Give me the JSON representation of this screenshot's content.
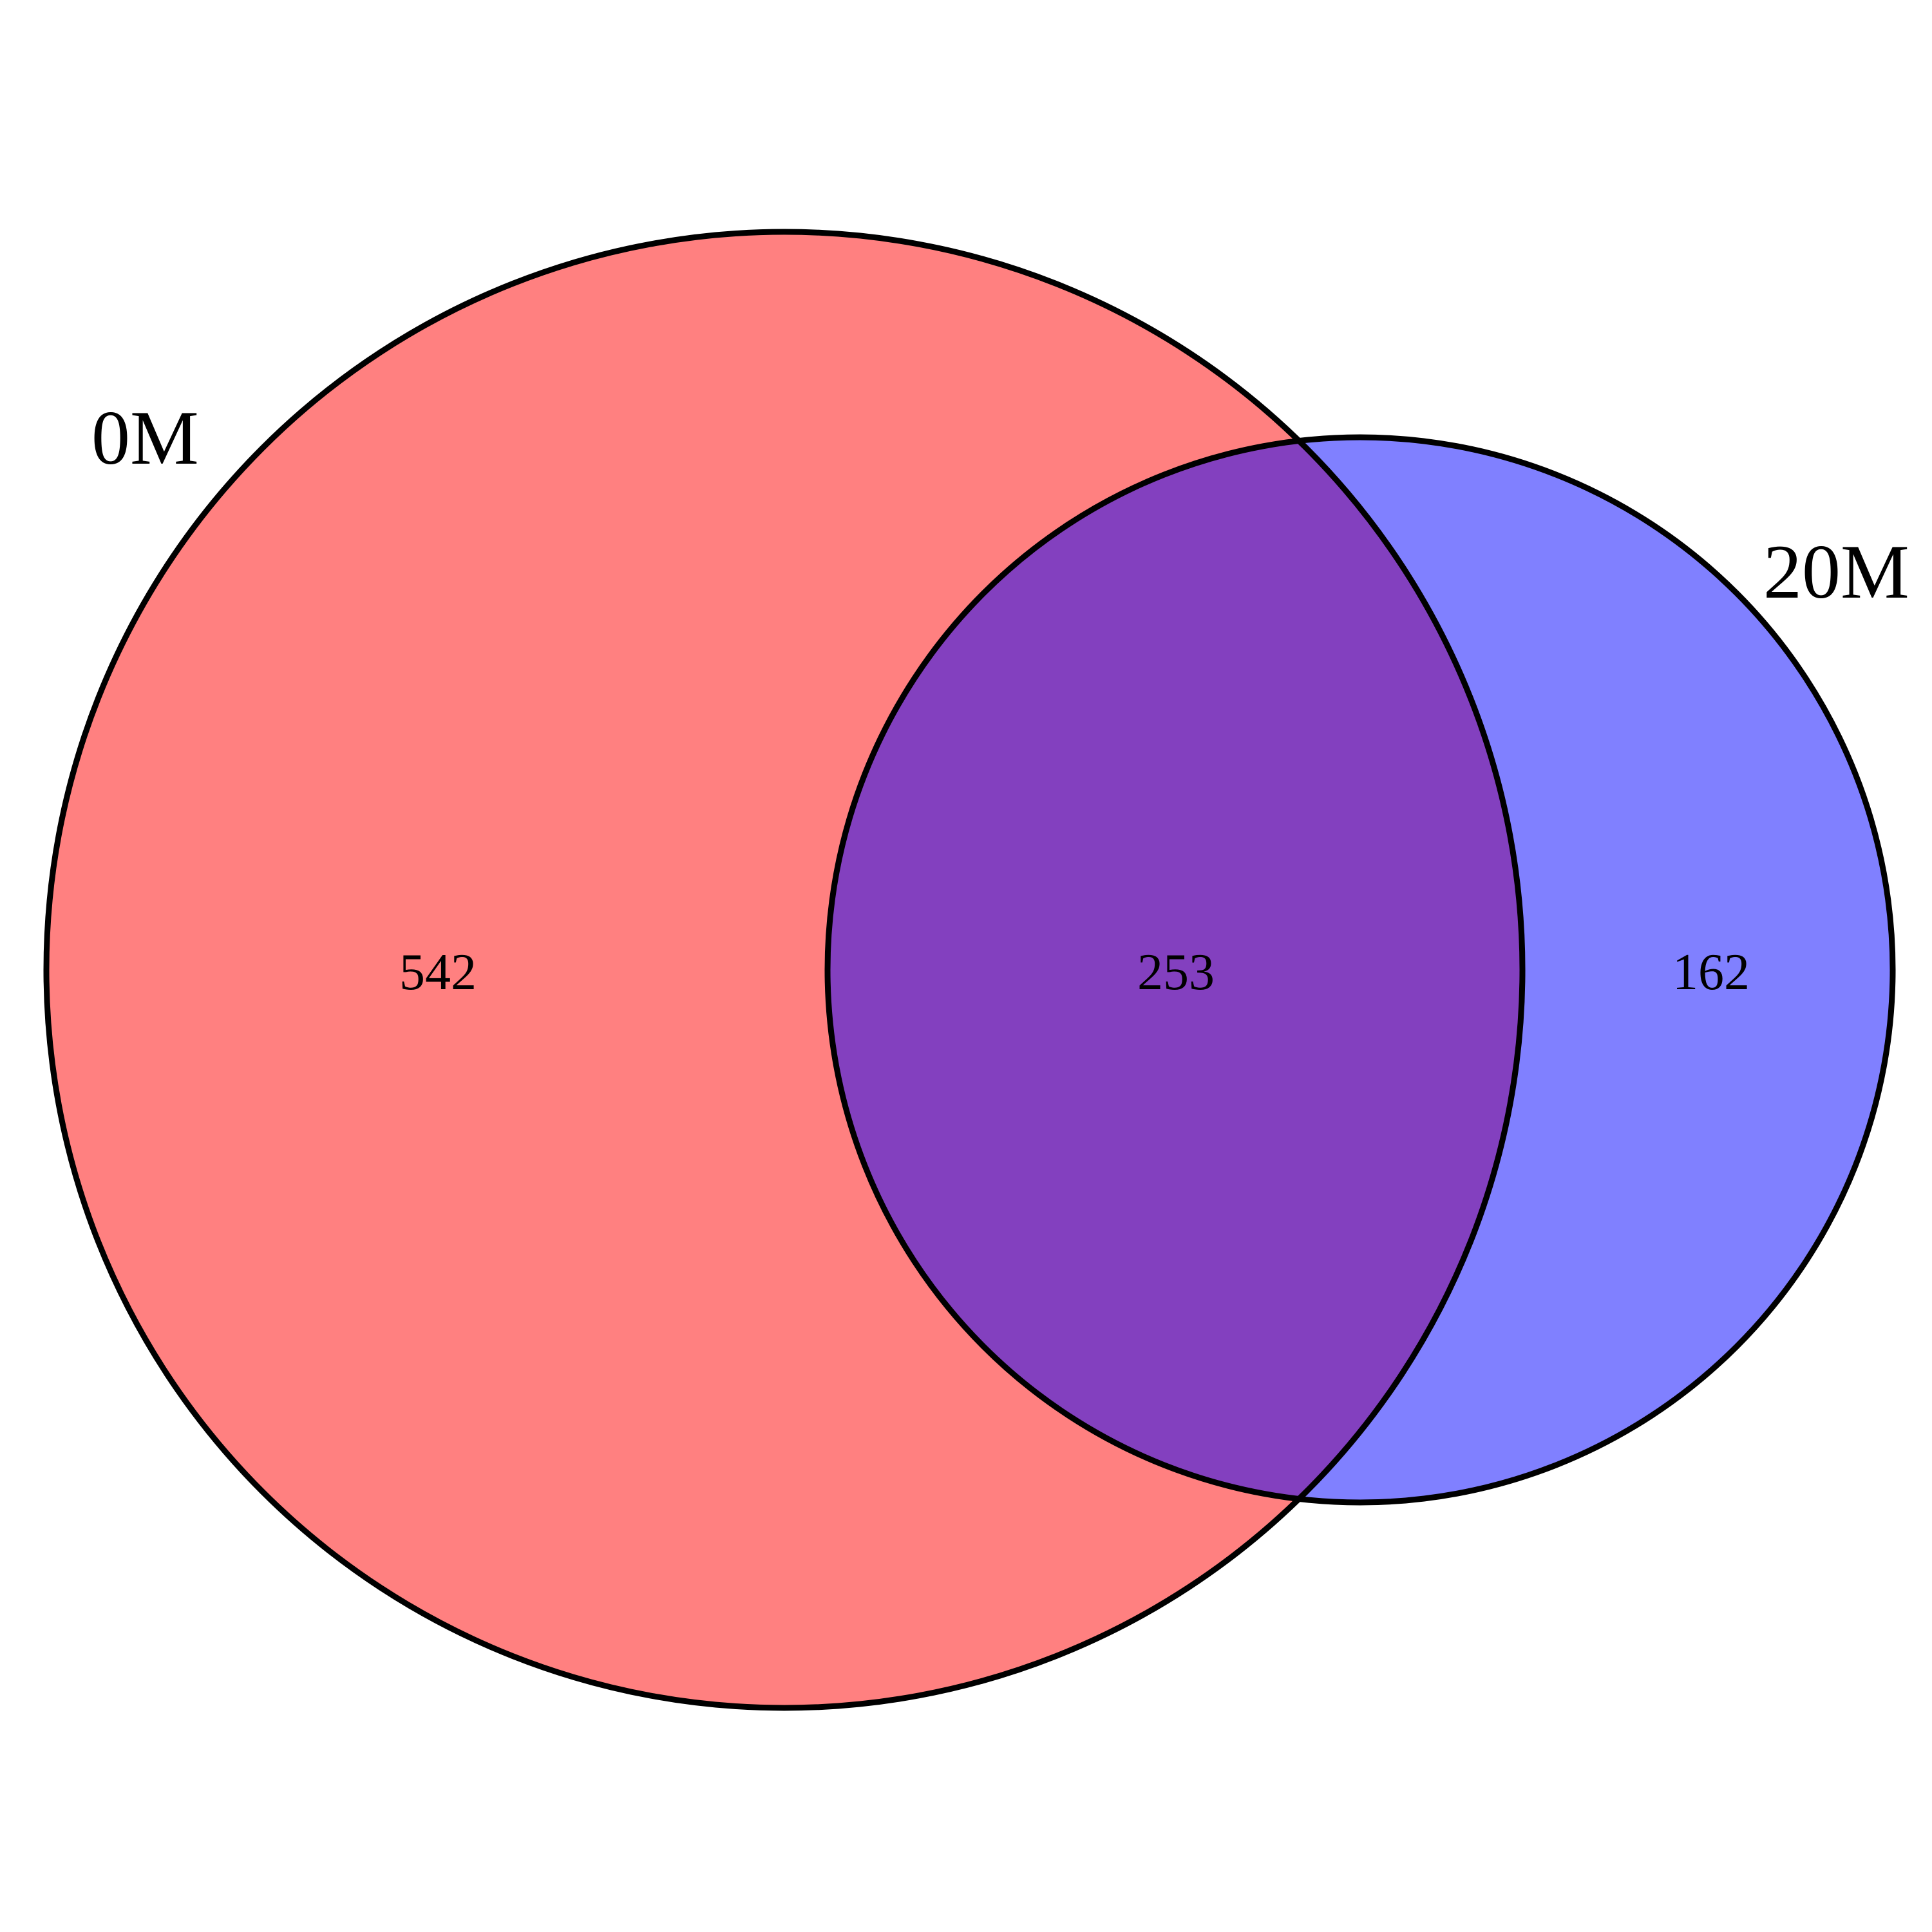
{
  "diagram": {
    "type": "venn",
    "sets": [
      {
        "name": "0M",
        "color": "#ff8080"
      },
      {
        "name": "20M",
        "color": "#8080ff"
      }
    ],
    "overlap_color": "#8340bf",
    "outline_color": "#000000",
    "regions": {
      "only_0M": "542",
      "both": "253",
      "only_20M": "162"
    }
  }
}
